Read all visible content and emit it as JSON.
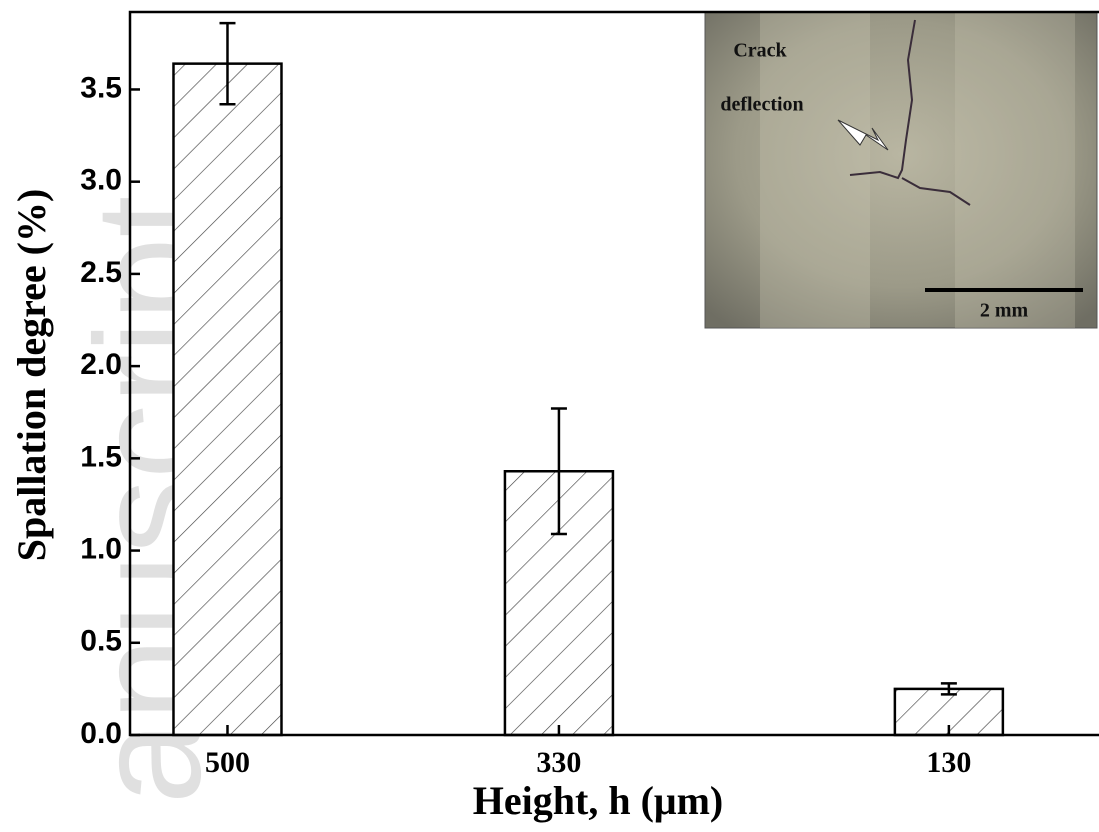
{
  "chart_data": {
    "type": "bar",
    "watermark": "anuscript",
    "x_label": "Height, h (μm)",
    "y_label": "Spallation degree (%)",
    "x": [
      500,
      330,
      130
    ],
    "values": [
      3.64,
      1.43,
      0.25
    ],
    "errors": [
      0.22,
      0.34,
      0.03
    ],
    "xlim": [
      550,
      53
    ],
    "xticks": [
      500,
      330,
      130
    ],
    "ylim": [
      0,
      3.92
    ],
    "yticks": [
      {
        "value": 0,
        "label": "0.0"
      },
      0.5,
      {
        "value": 1,
        "label": "1.0"
      },
      1.5,
      {
        "value": 2,
        "label": "2.0"
      },
      2.5,
      {
        "value": 3,
        "label": "3.0"
      },
      3.5
    ],
    "inset_annotation": [
      "Crack",
      "deflection"
    ],
    "inset_scale_bar": "2 mm"
  }
}
